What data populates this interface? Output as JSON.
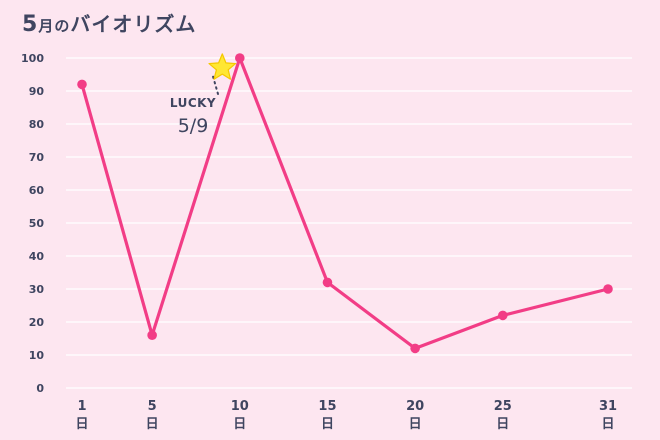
{
  "title": {
    "month": "5",
    "month_suffix": "月の",
    "main": "バイオリズム"
  },
  "chart_data": {
    "type": "line",
    "title": "5月のバイオリズム",
    "x": [
      1,
      5,
      10,
      15,
      20,
      25,
      31
    ],
    "categories": [
      "1",
      "5",
      "10",
      "15",
      "20",
      "25",
      "31"
    ],
    "x_unit": "日",
    "series": [
      {
        "values": [
          92,
          16,
          100,
          32,
          12,
          22,
          30
        ]
      }
    ],
    "ylim": [
      0,
      100
    ],
    "yticks": [
      0,
      10,
      20,
      30,
      40,
      50,
      60,
      70,
      80,
      90,
      100
    ],
    "grid": true,
    "annotation": {
      "word": "LUCKY",
      "date": "5/9",
      "x": 9,
      "y": 97
    }
  },
  "colors": {
    "background": "#fde6f0",
    "line": "#f23d86",
    "grid": "#ffffff",
    "text": "#3f4560",
    "star": "#ffe733",
    "star_outline": "#f5c800"
  },
  "icons": {
    "annotation_marker": "star-icon"
  }
}
